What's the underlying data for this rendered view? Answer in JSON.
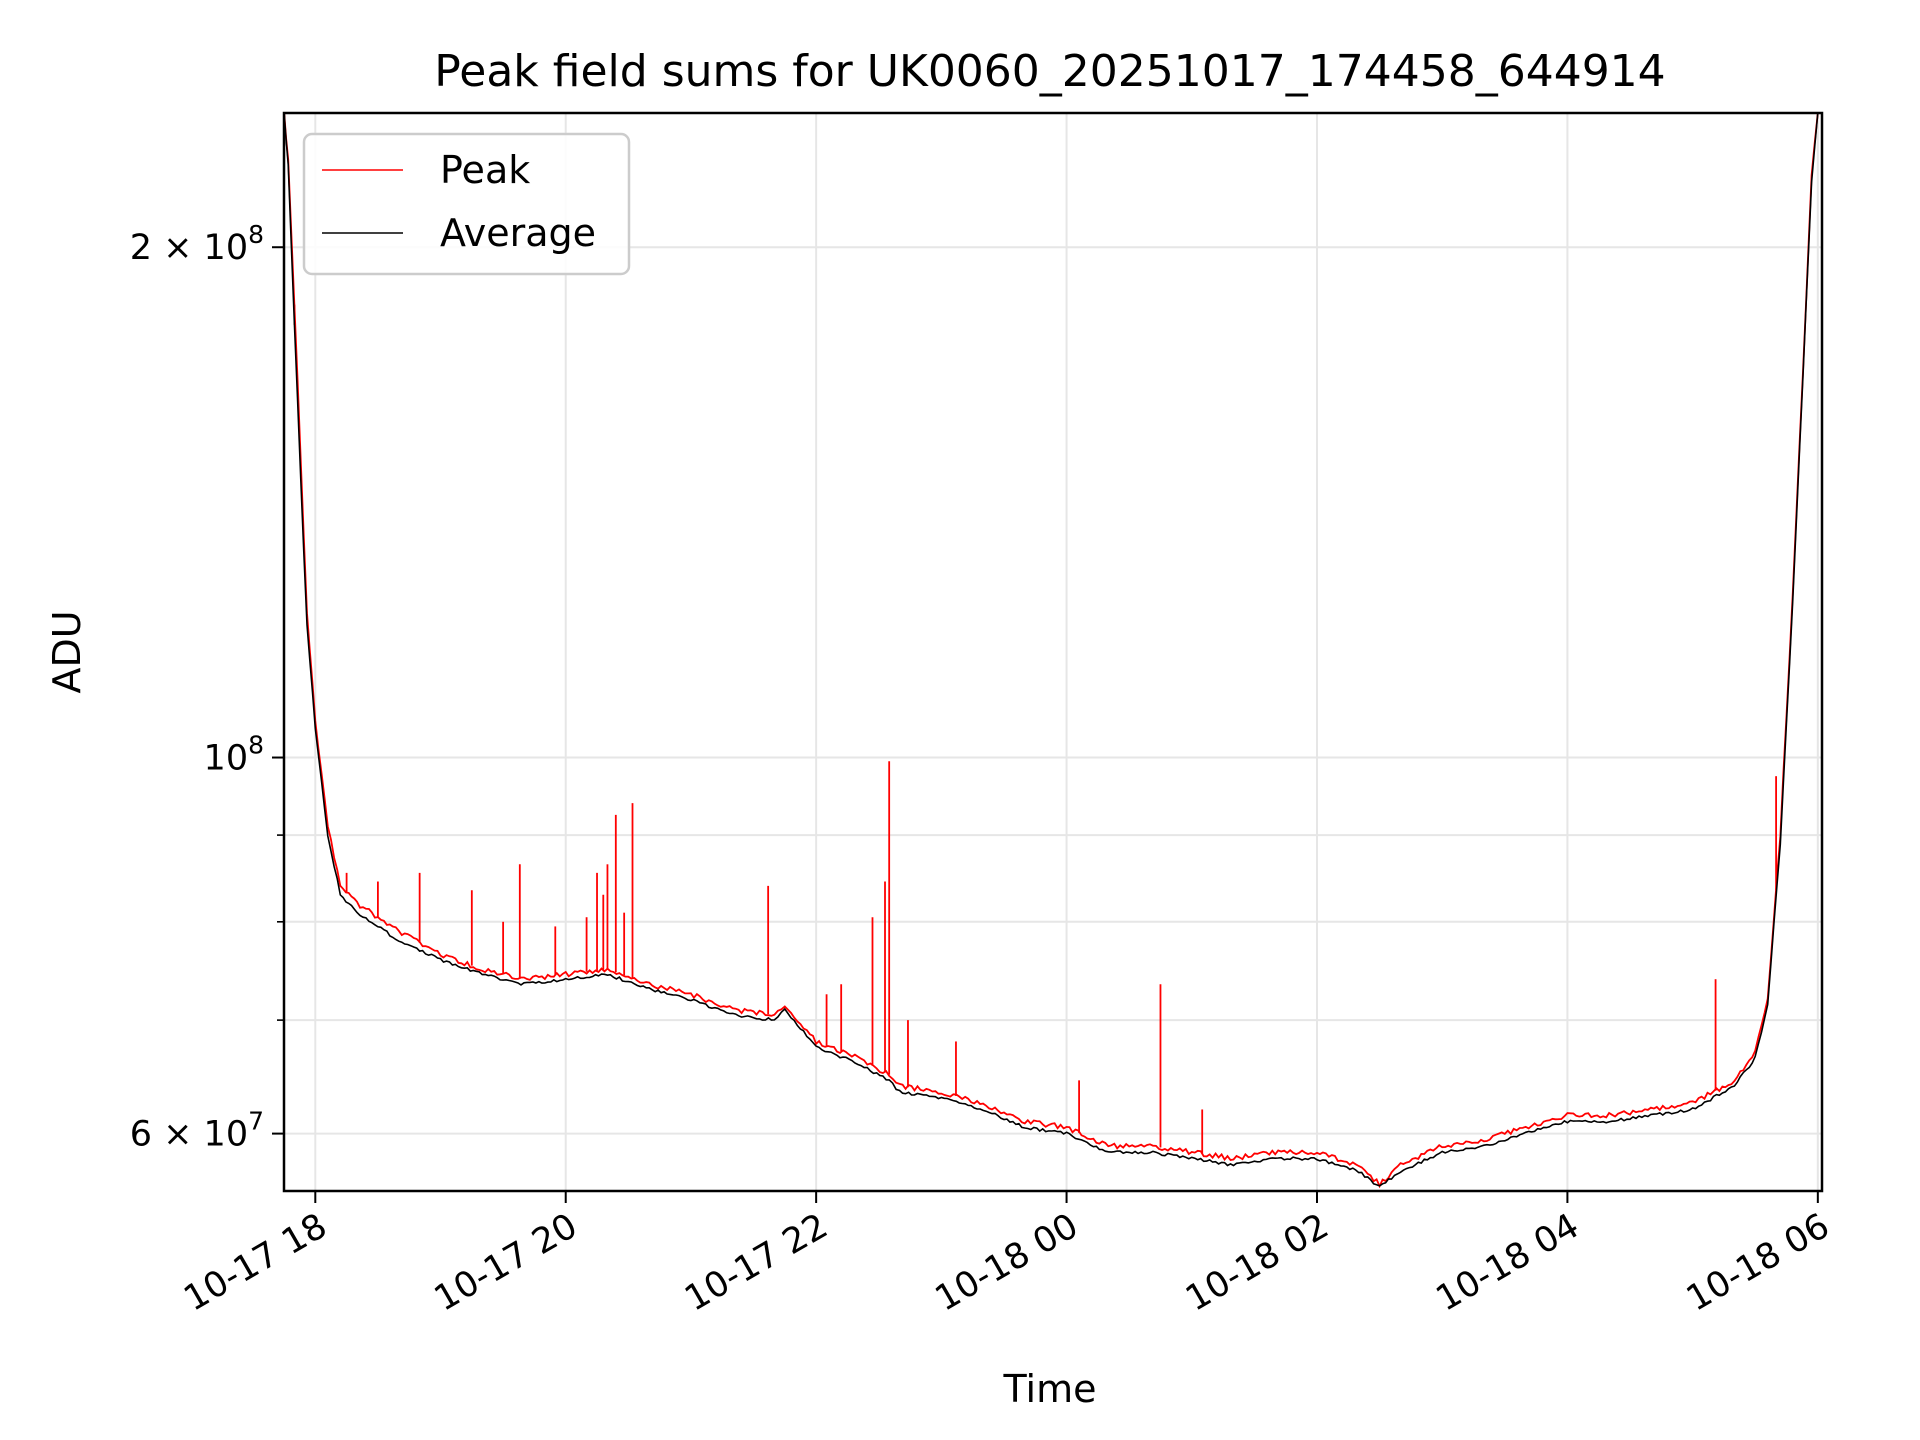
{
  "chart_data": {
    "type": "line",
    "title": "Peak field sums for UK0060_20251017_174458_644914",
    "xlabel": "Time",
    "ylabel": "ADU",
    "yscale": "log",
    "grid": true,
    "legend_position": "top-left",
    "x_axis": {
      "type": "datetime",
      "range": [
        "2025-10-17 17:45",
        "2025-10-18 06:02"
      ],
      "ticks": [
        "2025-10-17 18:00",
        "2025-10-17 20:00",
        "2025-10-17 22:00",
        "2025-10-18 00:00",
        "2025-10-18 02:00",
        "2025-10-18 04:00",
        "2025-10-18 06:00"
      ],
      "tick_labels": [
        "10-17 18",
        "10-17 20",
        "10-17 22",
        "10-18 00",
        "10-18 02",
        "10-18 04",
        "10-18 06"
      ],
      "tick_rotation": 30
    },
    "y_axis": {
      "range": [
        55500000,
        240000000
      ],
      "major_ticks": [
        {
          "value": 60000000,
          "label_mantissa": "6",
          "label_exp": "7"
        },
        {
          "value": 100000000,
          "label_mantissa": "",
          "label_exp": "8"
        },
        {
          "value": 200000000,
          "label_mantissa": "2",
          "label_exp": "8"
        }
      ],
      "minor_ticks": [
        70000000,
        80000000,
        90000000
      ]
    },
    "series": [
      {
        "name": "Peak",
        "color": "#ff0000",
        "x": [
          "2025-10-17 17:45",
          "2025-10-17 17:47",
          "2025-10-17 17:50",
          "2025-10-17 17:53",
          "2025-10-17 17:56",
          "2025-10-17 18:00",
          "2025-10-17 18:06",
          "2025-10-17 18:12",
          "2025-10-17 18:20",
          "2025-10-17 18:40",
          "2025-10-17 19:00",
          "2025-10-17 19:20",
          "2025-10-17 19:40",
          "2025-10-17 20:00",
          "2025-10-17 20:20",
          "2025-10-17 20:40",
          "2025-10-17 21:00",
          "2025-10-17 21:20",
          "2025-10-17 21:40",
          "2025-10-17 21:45",
          "2025-10-17 22:00",
          "2025-10-17 22:20",
          "2025-10-17 22:35",
          "2025-10-17 22:40",
          "2025-10-17 23:00",
          "2025-10-17 23:20",
          "2025-10-17 23:40",
          "2025-10-18 00:00",
          "2025-10-18 00:20",
          "2025-10-18 00:40",
          "2025-10-18 01:00",
          "2025-10-18 01:20",
          "2025-10-18 01:40",
          "2025-10-18 02:00",
          "2025-10-18 02:20",
          "2025-10-18 02:30",
          "2025-10-18 02:40",
          "2025-10-18 03:00",
          "2025-10-18 03:20",
          "2025-10-18 03:40",
          "2025-10-18 04:00",
          "2025-10-18 04:20",
          "2025-10-18 04:40",
          "2025-10-18 05:00",
          "2025-10-18 05:10",
          "2025-10-18 05:20",
          "2025-10-18 05:30",
          "2025-10-18 05:36",
          "2025-10-18 05:42",
          "2025-10-18 05:48",
          "2025-10-18 05:53",
          "2025-10-18 05:57",
          "2025-10-18 06:00"
        ],
        "y": [
          240000000,
          225000000,
          185000000,
          150000000,
          122000000,
          105000000,
          91000000,
          84000000,
          82000000,
          79000000,
          76500000,
          75000000,
          74000000,
          74500000,
          75000000,
          73500000,
          72500000,
          71000000,
          70500000,
          71500000,
          68000000,
          66500000,
          65000000,
          64000000,
          63500000,
          62500000,
          61000000,
          60500000,
          59000000,
          59000000,
          58500000,
          58000000,
          58500000,
          58500000,
          57500000,
          56000000,
          57500000,
          59000000,
          59500000,
          60500000,
          61500000,
          61500000,
          62000000,
          62500000,
          63500000,
          64500000,
          67000000,
          72000000,
          90000000,
          125000000,
          170000000,
          220000000,
          240000000
        ],
        "spikes": [
          {
            "x": "2025-10-17 17:50",
            "y": 180000000
          },
          {
            "x": "2025-10-17 18:15",
            "y": 85500000
          },
          {
            "x": "2025-10-17 18:30",
            "y": 84500000
          },
          {
            "x": "2025-10-17 18:50",
            "y": 85500000
          },
          {
            "x": "2025-10-17 19:15",
            "y": 83500000
          },
          {
            "x": "2025-10-17 19:30",
            "y": 80000000
          },
          {
            "x": "2025-10-17 19:38",
            "y": 86500000
          },
          {
            "x": "2025-10-17 19:55",
            "y": 79500000
          },
          {
            "x": "2025-10-17 20:10",
            "y": 80500000
          },
          {
            "x": "2025-10-17 20:15",
            "y": 85500000
          },
          {
            "x": "2025-10-17 20:18",
            "y": 83000000
          },
          {
            "x": "2025-10-17 20:20",
            "y": 86500000
          },
          {
            "x": "2025-10-17 20:24",
            "y": 92500000
          },
          {
            "x": "2025-10-17 20:28",
            "y": 81000000
          },
          {
            "x": "2025-10-17 20:32",
            "y": 94000000
          },
          {
            "x": "2025-10-17 21:37",
            "y": 84000000
          },
          {
            "x": "2025-10-17 22:05",
            "y": 72500000
          },
          {
            "x": "2025-10-17 22:12",
            "y": 73500000
          },
          {
            "x": "2025-10-17 22:27",
            "y": 80500000
          },
          {
            "x": "2025-10-17 22:33",
            "y": 84500000
          },
          {
            "x": "2025-10-17 22:35",
            "y": 99500000
          },
          {
            "x": "2025-10-17 22:44",
            "y": 70000000
          },
          {
            "x": "2025-10-17 23:07",
            "y": 68000000
          },
          {
            "x": "2025-10-18 00:06",
            "y": 64500000
          },
          {
            "x": "2025-10-18 00:45",
            "y": 73500000
          },
          {
            "x": "2025-10-18 01:05",
            "y": 62000000
          },
          {
            "x": "2025-10-18 05:11",
            "y": 74000000
          },
          {
            "x": "2025-10-18 05:40",
            "y": 97500000
          }
        ]
      },
      {
        "name": "Average",
        "color": "#000000",
        "x": [
          "2025-10-17 17:45",
          "2025-10-17 17:47",
          "2025-10-17 17:50",
          "2025-10-17 17:53",
          "2025-10-17 17:56",
          "2025-10-17 18:00",
          "2025-10-17 18:06",
          "2025-10-17 18:12",
          "2025-10-17 18:20",
          "2025-10-17 18:40",
          "2025-10-17 19:00",
          "2025-10-17 19:20",
          "2025-10-17 19:40",
          "2025-10-17 20:00",
          "2025-10-17 20:20",
          "2025-10-17 20:40",
          "2025-10-17 21:00",
          "2025-10-17 21:20",
          "2025-10-17 21:40",
          "2025-10-17 21:45",
          "2025-10-17 22:00",
          "2025-10-17 22:20",
          "2025-10-17 22:35",
          "2025-10-17 22:40",
          "2025-10-17 23:00",
          "2025-10-17 23:20",
          "2025-10-17 23:40",
          "2025-10-18 00:00",
          "2025-10-18 00:20",
          "2025-10-18 00:40",
          "2025-10-18 01:00",
          "2025-10-18 01:20",
          "2025-10-18 01:40",
          "2025-10-18 02:00",
          "2025-10-18 02:20",
          "2025-10-18 02:30",
          "2025-10-18 02:40",
          "2025-10-18 03:00",
          "2025-10-18 03:20",
          "2025-10-18 03:40",
          "2025-10-18 04:00",
          "2025-10-18 04:20",
          "2025-10-18 04:40",
          "2025-10-18 05:00",
          "2025-10-18 05:10",
          "2025-10-18 05:20",
          "2025-10-18 05:30",
          "2025-10-18 05:36",
          "2025-10-18 05:42",
          "2025-10-18 05:48",
          "2025-10-18 05:53",
          "2025-10-18 05:57",
          "2025-10-18 06:00"
        ],
        "y": [
          240000000,
          224000000,
          180000000,
          146000000,
          120000000,
          104000000,
          90000000,
          83000000,
          81000000,
          78000000,
          76000000,
          74500000,
          73500000,
          74000000,
          74500000,
          73000000,
          72000000,
          70500000,
          70000000,
          71000000,
          67500000,
          66000000,
          64500000,
          63500000,
          63000000,
          62000000,
          60500000,
          60000000,
          58500000,
          58500000,
          58000000,
          57500000,
          58000000,
          58000000,
          57000000,
          55800000,
          57000000,
          58500000,
          59000000,
          60000000,
          61000000,
          61000000,
          61500000,
          62000000,
          63000000,
          64000000,
          66500000,
          71500000,
          89000000,
          124000000,
          169000000,
          219000000,
          240000000
        ]
      }
    ]
  }
}
